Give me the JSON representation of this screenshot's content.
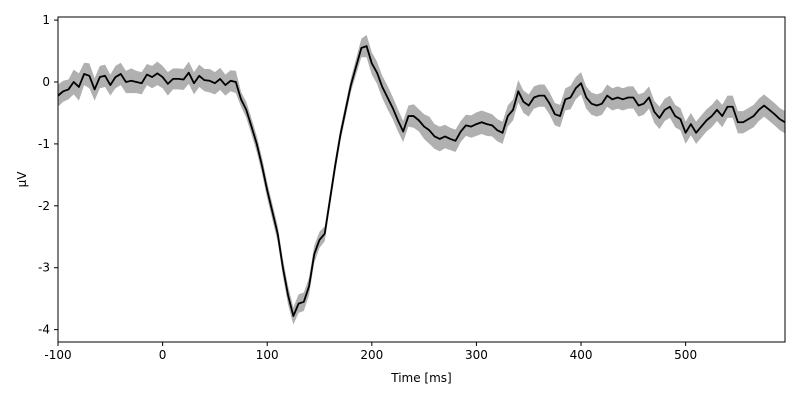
{
  "chart_data": {
    "type": "line",
    "title": "",
    "xlabel": "Time [ms]",
    "ylabel": "µV",
    "xlim": [
      -100,
      595
    ],
    "ylim": [
      -4.2,
      1.05
    ],
    "xticks": [
      -100,
      0,
      100,
      200,
      300,
      400,
      500
    ],
    "yticks": [
      -4,
      -3,
      -2,
      -1,
      0,
      1
    ],
    "xtick_labels": [
      "-100",
      "0",
      "100",
      "200",
      "300",
      "400",
      "500"
    ],
    "ytick_labels": [
      "-4",
      "-3",
      "-2",
      "-1",
      "0",
      "1"
    ],
    "grid": false,
    "legend": "none",
    "line_color": "#000000",
    "band_color": "#b0b0b0",
    "series": [
      {
        "x": [
          -100,
          -95,
          -90,
          -85,
          -80,
          -75,
          -70,
          -65,
          -60,
          -55,
          -50,
          -45,
          -40,
          -35,
          -30,
          -25,
          -20,
          -15,
          -10,
          -5,
          0,
          5,
          10,
          15,
          20,
          25,
          30,
          35,
          40,
          45,
          50,
          55,
          60,
          65,
          70,
          75,
          80,
          85,
          90,
          95,
          100,
          105,
          110,
          115,
          120,
          125,
          130,
          135,
          140,
          145,
          150,
          155,
          160,
          165,
          170,
          175,
          180,
          185,
          190,
          195,
          200,
          205,
          210,
          215,
          220,
          225,
          230,
          235,
          240,
          245,
          250,
          255,
          260,
          265,
          270,
          275,
          280,
          285,
          290,
          295,
          300,
          305,
          310,
          315,
          320,
          325,
          330,
          335,
          340,
          345,
          350,
          355,
          360,
          365,
          370,
          375,
          380,
          385,
          390,
          395,
          400,
          405,
          410,
          415,
          420,
          425,
          430,
          435,
          440,
          445,
          450,
          455,
          460,
          465,
          470,
          475,
          480,
          485,
          490,
          495,
          500,
          505,
          510,
          515,
          520,
          525,
          530,
          535,
          540,
          545,
          550,
          555,
          560,
          565,
          570,
          575,
          580,
          585,
          590,
          595
        ],
        "y": [
          -0.22,
          -0.15,
          -0.12,
          0.0,
          -0.08,
          0.13,
          0.1,
          -0.12,
          0.08,
          0.1,
          -0.05,
          0.08,
          0.13,
          0.0,
          0.02,
          0.0,
          -0.02,
          0.12,
          0.08,
          0.14,
          0.08,
          -0.03,
          0.05,
          0.05,
          0.04,
          0.15,
          -0.02,
          0.1,
          0.03,
          0.02,
          -0.02,
          0.05,
          -0.05,
          0.02,
          0.0,
          -0.28,
          -0.45,
          -0.72,
          -1.0,
          -1.35,
          -1.75,
          -2.1,
          -2.45,
          -3.0,
          -3.45,
          -3.78,
          -3.58,
          -3.55,
          -3.3,
          -2.78,
          -2.55,
          -2.45,
          -1.9,
          -1.35,
          -0.85,
          -0.45,
          -0.05,
          0.25,
          0.55,
          0.58,
          0.3,
          0.15,
          -0.08,
          -0.25,
          -0.42,
          -0.62,
          -0.8,
          -0.55,
          -0.55,
          -0.62,
          -0.72,
          -0.78,
          -0.88,
          -0.92,
          -0.88,
          -0.92,
          -0.95,
          -0.8,
          -0.7,
          -0.72,
          -0.68,
          -0.65,
          -0.68,
          -0.7,
          -0.78,
          -0.82,
          -0.55,
          -0.45,
          -0.15,
          -0.32,
          -0.38,
          -0.25,
          -0.22,
          -0.22,
          -0.35,
          -0.52,
          -0.55,
          -0.28,
          -0.25,
          -0.1,
          -0.02,
          -0.25,
          -0.35,
          -0.38,
          -0.35,
          -0.22,
          -0.28,
          -0.25,
          -0.28,
          -0.25,
          -0.25,
          -0.38,
          -0.35,
          -0.25,
          -0.48,
          -0.58,
          -0.45,
          -0.4,
          -0.55,
          -0.6,
          -0.82,
          -0.68,
          -0.82,
          -0.72,
          -0.62,
          -0.55,
          -0.45,
          -0.55,
          -0.4,
          -0.4,
          -0.65,
          -0.65,
          -0.6,
          -0.55,
          -0.45,
          -0.38,
          -0.45,
          -0.52,
          -0.6,
          -0.65
        ],
        "lower": [
          -0.4,
          -0.32,
          -0.28,
          -0.2,
          -0.3,
          -0.05,
          -0.1,
          -0.3,
          -0.1,
          -0.08,
          -0.22,
          -0.1,
          -0.05,
          -0.18,
          -0.18,
          -0.18,
          -0.2,
          -0.05,
          -0.1,
          -0.05,
          -0.1,
          -0.22,
          -0.12,
          -0.12,
          -0.13,
          -0.03,
          -0.2,
          -0.08,
          -0.15,
          -0.17,
          -0.2,
          -0.13,
          -0.22,
          -0.15,
          -0.18,
          -0.4,
          -0.58,
          -0.85,
          -1.13,
          -1.48,
          -1.88,
          -2.23,
          -2.58,
          -3.14,
          -3.6,
          -3.92,
          -3.73,
          -3.7,
          -3.44,
          -2.92,
          -2.68,
          -2.57,
          -2.02,
          -1.47,
          -0.96,
          -0.56,
          -0.16,
          0.12,
          0.4,
          0.4,
          0.12,
          -0.03,
          -0.26,
          -0.44,
          -0.6,
          -0.8,
          -0.97,
          -0.72,
          -0.74,
          -0.8,
          -0.92,
          -1.0,
          -1.08,
          -1.12,
          -1.07,
          -1.1,
          -1.13,
          -0.97,
          -0.87,
          -0.9,
          -0.87,
          -0.84,
          -0.87,
          -0.88,
          -0.96,
          -1.0,
          -0.72,
          -0.62,
          -0.33,
          -0.5,
          -0.56,
          -0.43,
          -0.4,
          -0.4,
          -0.53,
          -0.7,
          -0.73,
          -0.46,
          -0.44,
          -0.28,
          -0.2,
          -0.43,
          -0.53,
          -0.56,
          -0.53,
          -0.4,
          -0.46,
          -0.43,
          -0.46,
          -0.43,
          -0.43,
          -0.56,
          -0.53,
          -0.43,
          -0.66,
          -0.76,
          -0.63,
          -0.58,
          -0.73,
          -0.78,
          -1.0,
          -0.86,
          -1.0,
          -0.9,
          -0.8,
          -0.73,
          -0.63,
          -0.73,
          -0.58,
          -0.58,
          -0.83,
          -0.83,
          -0.78,
          -0.73,
          -0.63,
          -0.56,
          -0.63,
          -0.7,
          -0.78,
          -0.83
        ],
        "upper": [
          -0.04,
          0.02,
          0.04,
          0.2,
          0.14,
          0.31,
          0.3,
          0.06,
          0.26,
          0.28,
          0.12,
          0.26,
          0.31,
          0.18,
          0.22,
          0.18,
          0.16,
          0.29,
          0.26,
          0.33,
          0.26,
          0.16,
          0.22,
          0.22,
          0.21,
          0.33,
          0.16,
          0.28,
          0.21,
          0.21,
          0.16,
          0.23,
          0.12,
          0.19,
          0.18,
          -0.16,
          -0.32,
          -0.59,
          -0.87,
          -1.22,
          -1.62,
          -1.97,
          -2.32,
          -2.86,
          -3.3,
          -3.64,
          -3.43,
          -3.4,
          -3.16,
          -2.64,
          -2.42,
          -2.33,
          -1.78,
          -1.23,
          -0.74,
          -0.34,
          0.06,
          0.38,
          0.7,
          0.76,
          0.48,
          0.33,
          0.1,
          -0.06,
          -0.24,
          -0.44,
          -0.63,
          -0.38,
          -0.36,
          -0.44,
          -0.52,
          -0.56,
          -0.68,
          -0.72,
          -0.69,
          -0.74,
          -0.77,
          -0.63,
          -0.53,
          -0.54,
          -0.49,
          -0.46,
          -0.49,
          -0.52,
          -0.6,
          -0.64,
          -0.38,
          -0.28,
          0.03,
          -0.14,
          -0.2,
          -0.07,
          -0.04,
          -0.04,
          -0.17,
          -0.34,
          -0.37,
          -0.1,
          -0.06,
          0.08,
          0.16,
          -0.07,
          -0.17,
          -0.2,
          -0.17,
          -0.04,
          -0.1,
          -0.07,
          -0.1,
          -0.07,
          -0.07,
          -0.2,
          -0.17,
          -0.07,
          -0.3,
          -0.4,
          -0.27,
          -0.22,
          -0.37,
          -0.42,
          -0.64,
          -0.5,
          -0.64,
          -0.54,
          -0.44,
          -0.37,
          -0.27,
          -0.37,
          -0.22,
          -0.22,
          -0.47,
          -0.47,
          -0.42,
          -0.37,
          -0.27,
          -0.2,
          -0.27,
          -0.34,
          -0.42,
          -0.47
        ]
      }
    ]
  }
}
